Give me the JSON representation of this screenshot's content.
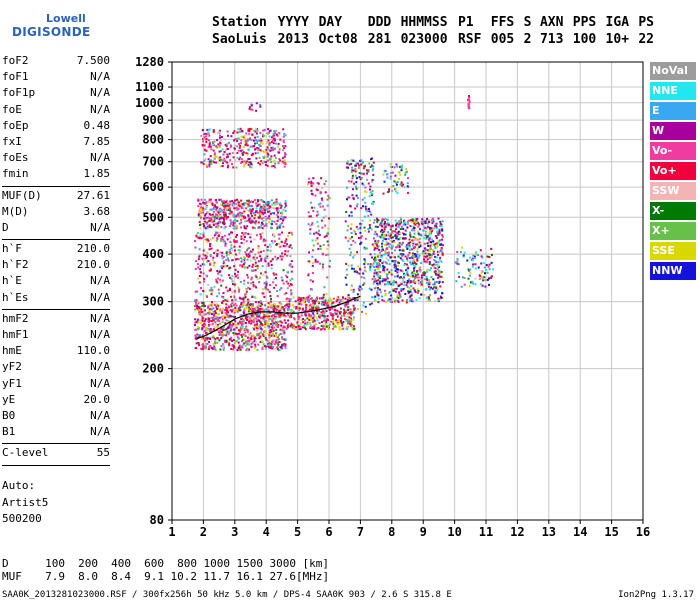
{
  "logo": {
    "line1": "Lowell",
    "line2": "DIGISONDE"
  },
  "header": {
    "labels": [
      "Station",
      "YYYY",
      "DAY",
      "DDD",
      "HHMMSS",
      "P1",
      "FFS",
      "S",
      "AXN",
      "PPS",
      "IGA",
      "PS"
    ],
    "values": [
      "SaoLuis",
      "2013",
      "Oct08",
      "281",
      "023000",
      "RSF",
      "005",
      "2",
      "713",
      "100",
      "10+",
      "22"
    ]
  },
  "params": {
    "group1": [
      {
        "k": "foF2",
        "v": "7.500"
      },
      {
        "k": "foF1",
        "v": "N/A"
      },
      {
        "k": "foF1p",
        "v": "N/A"
      },
      {
        "k": "foE",
        "v": "N/A"
      },
      {
        "k": "foEp",
        "v": "0.48"
      },
      {
        "k": "fxI",
        "v": "7.85"
      },
      {
        "k": "foEs",
        "v": "N/A"
      },
      {
        "k": "fmin",
        "v": "1.85"
      }
    ],
    "group2": [
      {
        "k": "MUF(D)",
        "v": "27.61"
      },
      {
        "k": "M(D)",
        "v": "3.68"
      },
      {
        "k": "D",
        "v": "N/A"
      }
    ],
    "group3": [
      {
        "k": "h`F",
        "v": "210.0"
      },
      {
        "k": "h`F2",
        "v": "210.0"
      },
      {
        "k": "h`E",
        "v": "N/A"
      },
      {
        "k": "h`Es",
        "v": "N/A"
      }
    ],
    "group4": [
      {
        "k": "hmF2",
        "v": "N/A"
      },
      {
        "k": "hmF1",
        "v": "N/A"
      },
      {
        "k": "hmE",
        "v": "110.0"
      },
      {
        "k": "yF2",
        "v": "N/A"
      },
      {
        "k": "yF1",
        "v": "N/A"
      },
      {
        "k": "yE",
        "v": "20.0"
      },
      {
        "k": "B0",
        "v": "N/A"
      },
      {
        "k": "B1",
        "v": "N/A"
      }
    ],
    "group5": [
      {
        "k": "C-level",
        "v": "55"
      }
    ]
  },
  "auto": {
    "line1": "Auto:",
    "line2": "Artist5",
    "line3": "500200"
  },
  "legend": [
    {
      "label": "NoVal",
      "color": "#9c9c9c"
    },
    {
      "label": "NNE",
      "color": "#22e6f2"
    },
    {
      "label": "E",
      "color": "#3aa8f0"
    },
    {
      "label": "W",
      "color": "#a8009c"
    },
    {
      "label": "Vo-",
      "color": "#f03ca0"
    },
    {
      "label": "Vo+",
      "color": "#f0003c"
    },
    {
      "label": "SSW",
      "color": "#f5b4b4"
    },
    {
      "label": "X-",
      "color": "#007a00"
    },
    {
      "label": "X+",
      "color": "#66c04a"
    },
    {
      "label": "SSE",
      "color": "#d8d800"
    },
    {
      "label": "NNW",
      "color": "#1212d8"
    }
  ],
  "chart_data": {
    "type": "scatter",
    "xlabel": "",
    "ylabel": "",
    "xlim": [
      1,
      16
    ],
    "ylim": [
      80,
      1280
    ],
    "y_scale": "log",
    "x_ticks": [
      1,
      2,
      3,
      4,
      5,
      6,
      7,
      8,
      9,
      10,
      11,
      12,
      13,
      14,
      15,
      16
    ],
    "y_ticks": [
      80,
      200,
      300,
      400,
      500,
      600,
      700,
      800,
      900,
      1000,
      1100,
      1280
    ],
    "grid": true,
    "trace": {
      "x": [
        1.8,
        2.0,
        2.3,
        2.6,
        3.0,
        3.4,
        3.8,
        4.2,
        4.6,
        5.0,
        5.4,
        5.8,
        6.2,
        6.6,
        7.0
      ],
      "y": [
        240,
        243,
        250,
        258,
        270,
        278,
        282,
        282,
        280,
        280,
        283,
        287,
        292,
        300,
        310
      ]
    }
  },
  "footer": {
    "d_label": "D",
    "d_values": [
      "100",
      "200",
      "400",
      "600",
      "800",
      "1000",
      "1500",
      "3000",
      "[km]"
    ],
    "muf_label": "MUF",
    "muf_values": [
      "7.9",
      "8.0",
      "8.4",
      "9.1",
      "10.2",
      "11.7",
      "16.1",
      "27.6",
      "[MHz]"
    ],
    "info": "SAA0K_2013281023000.RSF / 300fx256h 50 kHz 5.0 km / DPS-4 SAA0K 903 / 2.6 S 315.8 E",
    "version": "Ion2Png 1.3.17"
  }
}
